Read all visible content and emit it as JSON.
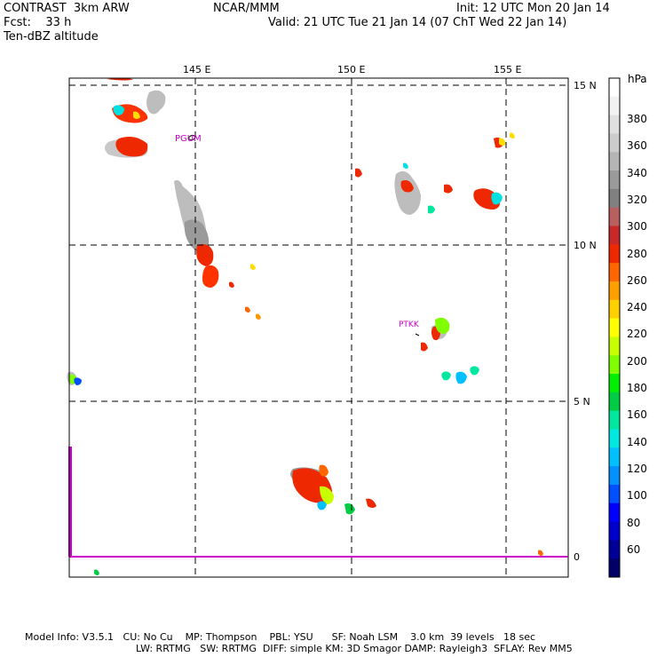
{
  "header": {
    "model_title": "CONTRAST  3km ARW",
    "forecast": "Fcst:    33 h",
    "field": "Ten-dBZ altitude",
    "center": "NCAR/MMM",
    "init": "Init: 12 UTC Mon 20 Jan 14",
    "valid": "Valid: 21 UTC Tue 21 Jan 14 (07 ChT Wed 22 Jan 14)"
  },
  "map": {
    "lon_labels": [
      "145 E",
      "150 E",
      "155 E"
    ],
    "lat_labels": [
      "15 N",
      "10 N",
      "5 N",
      "0"
    ],
    "stations": [
      {
        "name": "PGUM",
        "color": "#cc00cc"
      },
      {
        "name": "PTKK",
        "color": "#cc00cc"
      }
    ],
    "colors": {
      "boundary": "#cc00cc",
      "grid": "#000000"
    }
  },
  "colorbar": {
    "unit": "hPa",
    "levels": [
      "380",
      "360",
      "340",
      "320",
      "300",
      "280",
      "260",
      "240",
      "220",
      "200",
      "180",
      "160",
      "140",
      "120",
      "100",
      "80",
      "60"
    ],
    "colors": [
      "#ffffff",
      "#f2f2f2",
      "#e0e0e0",
      "#cccccc",
      "#b5b5b5",
      "#9a9a9a",
      "#808080",
      "#b86060",
      "#c82828",
      "#ee2800",
      "#ff6600",
      "#ffa000",
      "#ffd000",
      "#ffff00",
      "#c8ff00",
      "#80ff00",
      "#00ee00",
      "#00cc44",
      "#00e8a0",
      "#00e8e0",
      "#00c0ff",
      "#0090ff",
      "#0050ff",
      "#0000ff",
      "#0000cc",
      "#000099",
      "#000066"
    ]
  },
  "footer": {
    "line1": "Model Info: V3.5.1   CU: No Cu    MP: Thompson    PBL: YSU      SF: Noah LSM    3.0 km  39 levels   18 sec",
    "line2": "LW: RRTMG   SW: RRTMG  DIFF: simple KM: 3D Smagor DAMP: Rayleigh3  SFLAY: Rev MM5"
  }
}
